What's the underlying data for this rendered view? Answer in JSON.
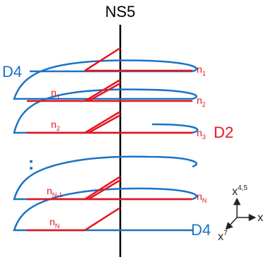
{
  "colors": {
    "brane": "#1a73c7",
    "string": "#e8141b",
    "ns5": "#000000",
    "axis": "#222222"
  },
  "ns5_label": "NS5",
  "d4_label": "D4",
  "d2_label": "D2",
  "dots_label": ":",
  "labels": {
    "n1": {
      "base": "n",
      "sub": "1"
    },
    "n2": {
      "base": "n",
      "sub": "2"
    },
    "n3": {
      "base": "n",
      "sub": "3"
    },
    "nN": {
      "base": "n",
      "sub": "N"
    },
    "nNm1": {
      "base": "n",
      "sub": "N-1"
    }
  },
  "axes": {
    "vertical": {
      "base": "x",
      "sup": "4,5"
    },
    "horizontal": "x",
    "diagonal": {
      "base": "x",
      "sup": "7"
    }
  }
}
